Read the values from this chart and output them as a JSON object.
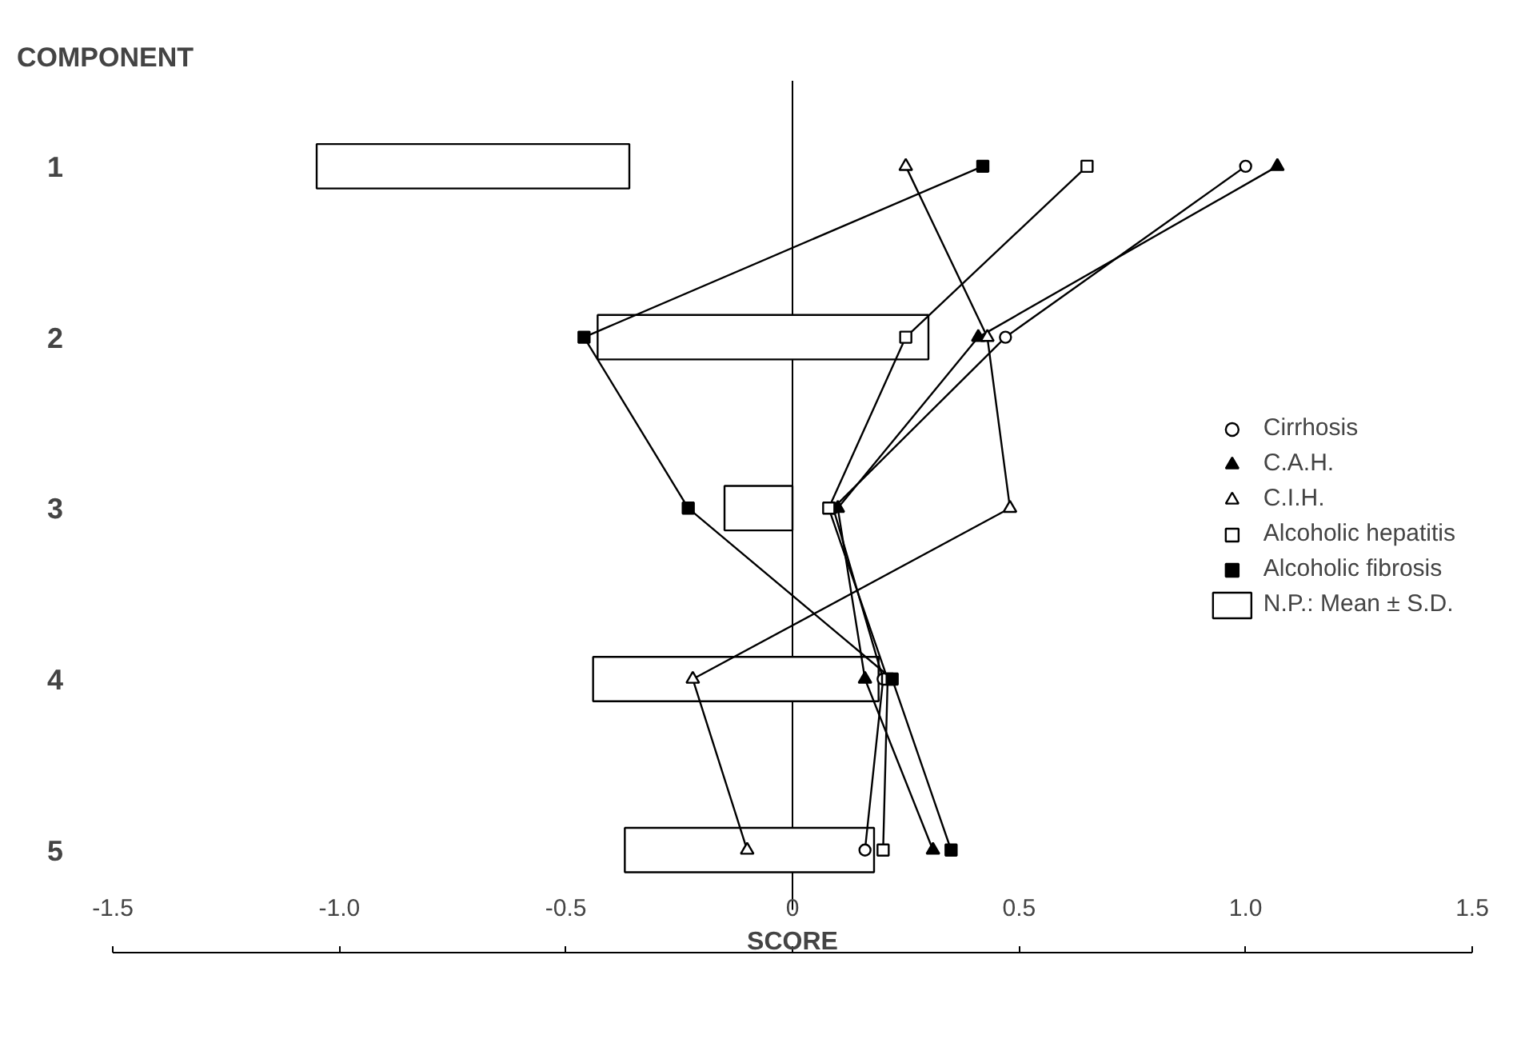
{
  "chart_data": {
    "type": "line",
    "orientation": "horizontal",
    "ylabel": "COMPONENT",
    "xlabel": "SCORE",
    "categories": [
      "1",
      "2",
      "3",
      "4",
      "5"
    ],
    "xlim": [
      -1.5,
      1.5
    ],
    "xticks": [
      {
        "value": -1.5,
        "label": "-1.5"
      },
      {
        "value": -1.0,
        "label": "-1.0"
      },
      {
        "value": -0.5,
        "label": "-0.5"
      },
      0,
      0.5,
      {
        "value": 1.0,
        "label": "1.0"
      },
      1.5
    ],
    "grid": false,
    "legend": "right",
    "ref_lines": [
      {
        "axis": "x",
        "value": 0,
        "color": "#000000"
      }
    ],
    "series": [
      {
        "name": "Cirrhosis",
        "marker": "circle",
        "color": "#ffffff",
        "values": [
          1.0,
          0.47,
          0.09,
          0.2,
          0.16
        ]
      },
      {
        "name": "C.A.H.",
        "marker": "triangle",
        "color": "#000000",
        "values": [
          1.07,
          0.41,
          0.1,
          0.16,
          0.31
        ]
      },
      {
        "name": "C.I.H.",
        "marker": "triangle",
        "color": "#ffffff",
        "values": [
          0.25,
          0.43,
          0.48,
          -0.22,
          -0.1
        ]
      },
      {
        "name": "Alcoholic hepatitis",
        "marker": "square",
        "color": "#ffffff",
        "values": [
          0.65,
          0.25,
          0.08,
          0.21,
          0.2
        ]
      },
      {
        "name": "Alcoholic fibrosis",
        "marker": "square",
        "color": "#000000",
        "values": [
          0.42,
          -0.46,
          -0.23,
          0.22,
          0.35
        ]
      },
      {
        "name": "N.P.: Mean ± S.D.",
        "type": "bar",
        "color": "#ffffff",
        "base": [
          -1.05,
          -0.43,
          -0.15,
          -0.44,
          -0.37
        ],
        "values": [
          0.69,
          0.73,
          0.15,
          0.63,
          0.55
        ]
      }
    ]
  }
}
